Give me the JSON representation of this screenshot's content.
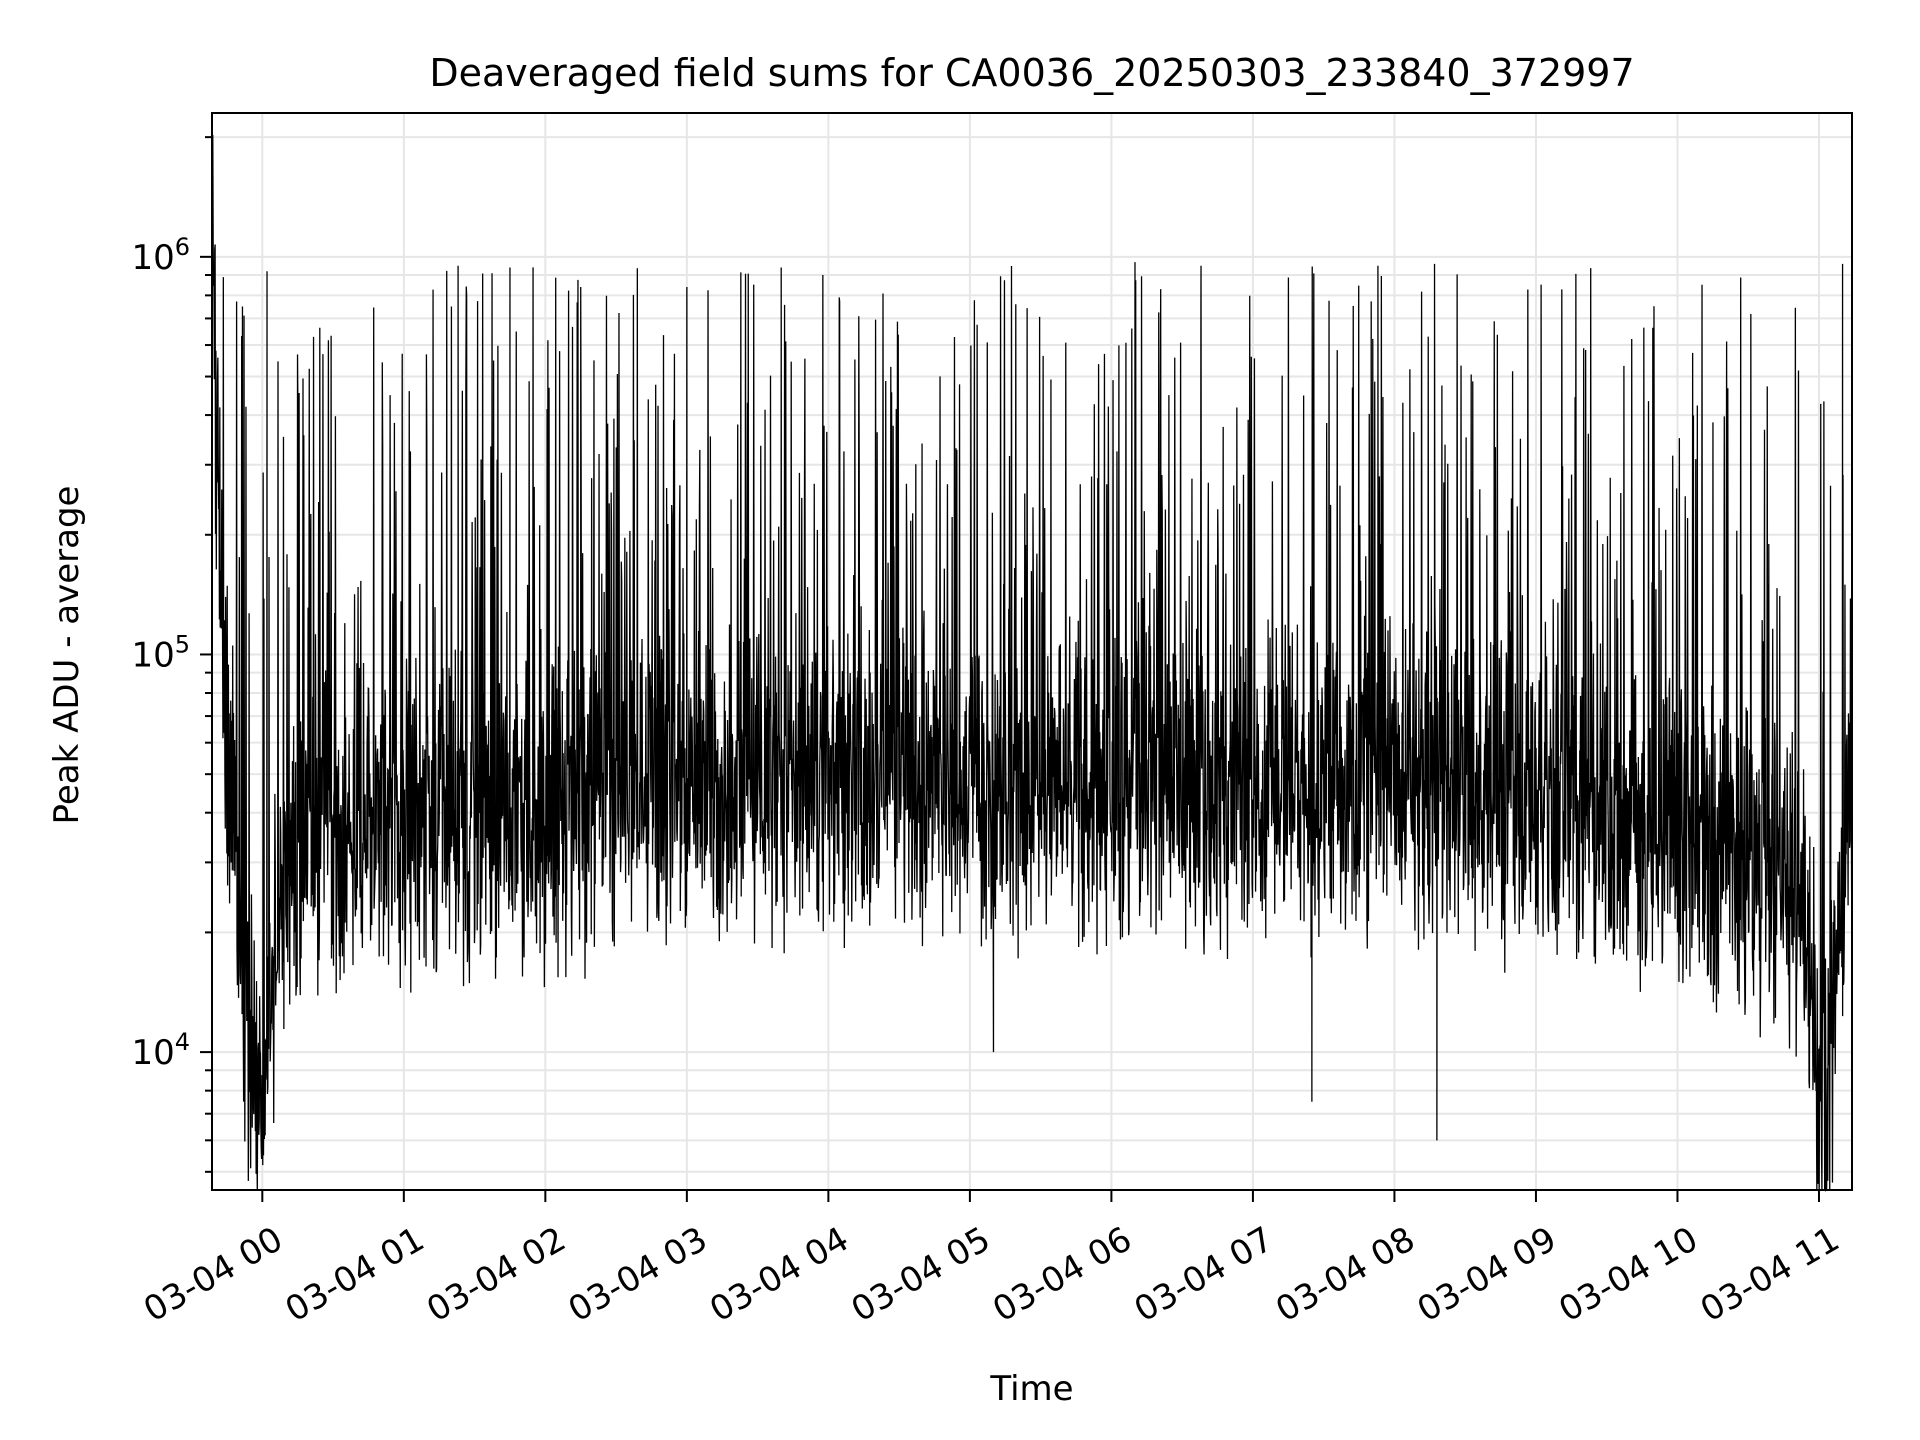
{
  "chart_data": {
    "type": "line",
    "title": "Deaveraged field sums for CA0036_20250303_233840_372997",
    "xlabel": "Time",
    "ylabel": "Peak ADU - average",
    "x_type": "datetime",
    "y_scale": "log",
    "xlim": [
      "2025-03-03 23:38:40",
      "2025-03-04 11:14:00"
    ],
    "ylim": [
      4500,
      2300000
    ],
    "grid": true,
    "colors": {
      "line": "#000000",
      "grid": "#e6e6e6",
      "axes": "#000000"
    },
    "x_ticks": [
      {
        "value": "2025-03-04 00:00",
        "label": "03-04 00"
      },
      {
        "value": "2025-03-04 01:00",
        "label": "03-04 01"
      },
      {
        "value": "2025-03-04 02:00",
        "label": "03-04 02"
      },
      {
        "value": "2025-03-04 03:00",
        "label": "03-04 03"
      },
      {
        "value": "2025-03-04 04:00",
        "label": "03-04 04"
      },
      {
        "value": "2025-03-04 05:00",
        "label": "03-04 05"
      },
      {
        "value": "2025-03-04 06:00",
        "label": "03-04 06"
      },
      {
        "value": "2025-03-04 07:00",
        "label": "03-04 07"
      },
      {
        "value": "2025-03-04 08:00",
        "label": "03-04 08"
      },
      {
        "value": "2025-03-04 09:00",
        "label": "03-04 09"
      },
      {
        "value": "2025-03-04 10:00",
        "label": "03-04 10"
      },
      {
        "value": "2025-03-04 11:00",
        "label": "03-04 11"
      }
    ],
    "y_ticks": [
      {
        "value": 10000,
        "base": "10",
        "exp": "4"
      },
      {
        "value": 100000,
        "base": "10",
        "exp": "5"
      },
      {
        "value": 1000000,
        "base": "10",
        "exp": "6"
      }
    ],
    "series": [
      {
        "x": [
          "2025-03-03 23:39",
          "2025-03-03 23:40",
          "2025-03-03 23:42",
          "2025-03-03 23:45",
          "2025-03-03 23:48",
          "2025-03-03 23:50",
          "2025-03-03 23:52",
          "2025-03-03 23:55",
          "2025-03-03 23:58",
          "2025-03-04 00:00",
          "2025-03-04 00:02",
          "2025-03-04 00:05",
          "2025-03-04 00:10",
          "2025-03-04 00:15",
          "2025-03-04 00:20",
          "2025-03-04 00:30",
          "2025-03-04 00:40",
          "2025-03-04 00:50",
          "2025-03-04 01:00",
          "2025-03-04 01:15",
          "2025-03-04 01:30",
          "2025-03-04 01:45",
          "2025-03-04 02:00",
          "2025-03-04 02:20",
          "2025-03-04 02:40",
          "2025-03-04 03:00",
          "2025-03-04 03:30",
          "2025-03-04 04:00",
          "2025-03-04 04:30",
          "2025-03-04 05:00",
          "2025-03-04 05:30",
          "2025-03-04 06:00",
          "2025-03-04 06:30",
          "2025-03-04 07:00",
          "2025-03-04 07:30",
          "2025-03-04 08:00",
          "2025-03-04 08:30",
          "2025-03-04 09:00",
          "2025-03-04 09:30",
          "2025-03-04 10:00",
          "2025-03-04 10:20",
          "2025-03-04 10:40",
          "2025-03-04 10:50",
          "2025-03-04 10:55",
          "2025-03-04 10:58",
          "2025-03-04 11:00",
          "2025-03-04 11:02",
          "2025-03-04 11:05",
          "2025-03-04 11:08",
          "2025-03-04 11:11",
          "2025-03-04 11:13"
        ],
        "y": [
          1700000,
          400000,
          150000,
          60000,
          35000,
          25000,
          15000,
          10000,
          8000,
          7000,
          12000,
          18000,
          25000,
          30000,
          33000,
          35000,
          36000,
          37000,
          38000,
          38000,
          38000,
          39000,
          40000,
          41000,
          43000,
          45000,
          44000,
          46000,
          45000,
          44000,
          44000,
          45000,
          44000,
          45000,
          47000,
          46000,
          44000,
          42000,
          38000,
          34000,
          30000,
          28000,
          27000,
          22000,
          12000,
          7000,
          6500,
          9000,
          16000,
          30000,
          50000
        ],
        "extremes": [
          {
            "x": "2025-03-03 23:38:50",
            "y": 1700000
          },
          {
            "x": "2025-03-04 00:00:30",
            "y": 5500
          },
          {
            "x": "2025-03-04 00:02:00",
            "y": 920000
          },
          {
            "x": "2025-03-04 01:23:00",
            "y": 950000
          },
          {
            "x": "2025-03-04 01:45:00",
            "y": 940000
          },
          {
            "x": "2025-03-04 02:15:00",
            "y": 840000
          },
          {
            "x": "2025-03-04 03:00:00",
            "y": 840000
          },
          {
            "x": "2025-03-04 03:40:00",
            "y": 940000
          },
          {
            "x": "2025-03-04 05:10:00",
            "y": 10000
          },
          {
            "x": "2025-03-04 06:10:00",
            "y": 970000
          },
          {
            "x": "2025-03-04 06:38:00",
            "y": 950000
          },
          {
            "x": "2025-03-04 07:25:00",
            "y": 7500
          },
          {
            "x": "2025-03-04 07:53:00",
            "y": 950000
          },
          {
            "x": "2025-03-04 08:17:00",
            "y": 960000
          },
          {
            "x": "2025-03-04 08:18:00",
            "y": 6000
          },
          {
            "x": "2025-03-04 10:59:00",
            "y": 5800
          },
          {
            "x": "2025-03-04 11:10:00",
            "y": 960000
          }
        ]
      }
    ]
  }
}
